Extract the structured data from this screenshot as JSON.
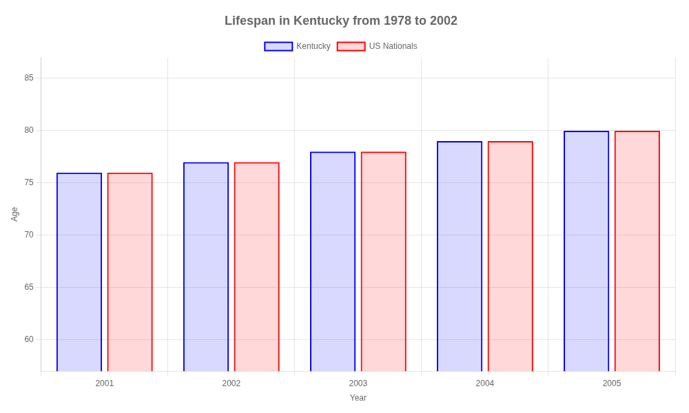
{
  "chart_data": {
    "type": "bar",
    "title": "Lifespan in Kentucky from 1978 to 2002",
    "xlabel": "Year",
    "ylabel": "Age",
    "categories": [
      "2001",
      "2002",
      "2003",
      "2004",
      "2005"
    ],
    "series": [
      {
        "name": "Kentucky",
        "color": "#0000ff",
        "values": [
          76,
          77,
          78,
          79,
          80
        ]
      },
      {
        "name": "US Nationals",
        "color": "#ff0000",
        "values": [
          76,
          77,
          78,
          79,
          80
        ]
      }
    ],
    "ylim": [
      57,
      87
    ],
    "yticks": [
      60,
      65,
      70,
      75,
      80,
      85
    ],
    "grid": true,
    "legend": "top"
  }
}
